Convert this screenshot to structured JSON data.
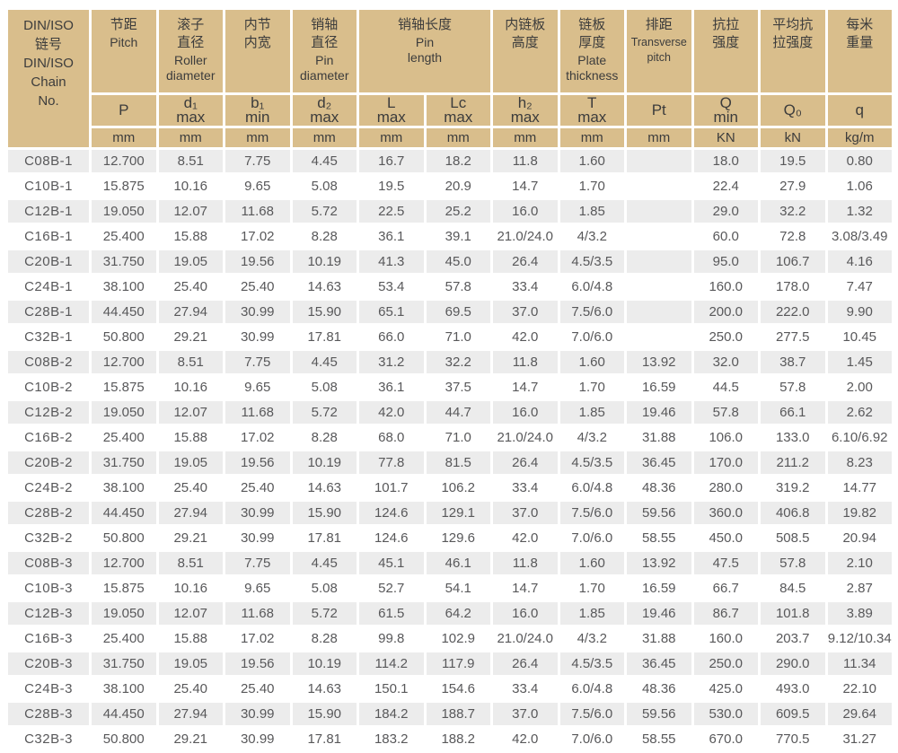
{
  "colors": {
    "header_bg": "#d9be8c",
    "stripe_bg": "#ececec",
    "data_text": "#58585a",
    "header_text": "#3c3c3c"
  },
  "table": {
    "chain_col_header": "DIN/ISO\n链号\nDIN/ISO\nChain\nNo.",
    "groups": [
      {
        "zh": "节距",
        "en": "Pitch",
        "span": 1
      },
      {
        "zh": "滚子\n直径",
        "en": "Roller\ndiameter",
        "span": 1
      },
      {
        "zh": "内节\n内宽",
        "en": "",
        "span": 1
      },
      {
        "zh": "销轴\n直径",
        "en": "Pin\ndiameter",
        "span": 1
      },
      {
        "zh": "销轴长度",
        "en": "Pin\nlength",
        "span": 2
      },
      {
        "zh": "内链板\n高度",
        "en": "",
        "span": 1
      },
      {
        "zh": "链板\n厚度",
        "en": "Plate\nthickness",
        "span": 1
      },
      {
        "zh": "排距",
        "en": "Transverse\npitch",
        "span": 1
      },
      {
        "zh": "抗拉\n强度",
        "en": "",
        "span": 1
      },
      {
        "zh": "平均抗\n拉强度",
        "en": "",
        "span": 1
      },
      {
        "zh": "每米\n重量",
        "en": "",
        "span": 1
      }
    ],
    "symbols": [
      "P",
      "d₁\nmax",
      "b₁\nmin",
      "d₂\nmax",
      "L\nmax",
      "Lc\nmax",
      "h₂\nmax",
      "T\nmax",
      "Pt",
      "Q\nmin",
      "Q₀",
      "q"
    ],
    "units": [
      "mm",
      "mm",
      "mm",
      "mm",
      "mm",
      "mm",
      "mm",
      "mm",
      "mm",
      "KN",
      "kN",
      "kg/m"
    ],
    "rows": [
      [
        "C08B-1",
        "12.700",
        "8.51",
        "7.75",
        "4.45",
        "16.7",
        "18.2",
        "11.8",
        "1.60",
        "",
        "18.0",
        "19.5",
        "0.80"
      ],
      [
        "C10B-1",
        "15.875",
        "10.16",
        "9.65",
        "5.08",
        "19.5",
        "20.9",
        "14.7",
        "1.70",
        "",
        "22.4",
        "27.9",
        "1.06"
      ],
      [
        "C12B-1",
        "19.050",
        "12.07",
        "11.68",
        "5.72",
        "22.5",
        "25.2",
        "16.0",
        "1.85",
        "",
        "29.0",
        "32.2",
        "1.32"
      ],
      [
        "C16B-1",
        "25.400",
        "15.88",
        "17.02",
        "8.28",
        "36.1",
        "39.1",
        "21.0/24.0",
        "4/3.2",
        "",
        "60.0",
        "72.8",
        "3.08/3.49"
      ],
      [
        "C20B-1",
        "31.750",
        "19.05",
        "19.56",
        "10.19",
        "41.3",
        "45.0",
        "26.4",
        "4.5/3.5",
        "",
        "95.0",
        "106.7",
        "4.16"
      ],
      [
        "C24B-1",
        "38.100",
        "25.40",
        "25.40",
        "14.63",
        "53.4",
        "57.8",
        "33.4",
        "6.0/4.8",
        "",
        "160.0",
        "178.0",
        "7.47"
      ],
      [
        "C28B-1",
        "44.450",
        "27.94",
        "30.99",
        "15.90",
        "65.1",
        "69.5",
        "37.0",
        "7.5/6.0",
        "",
        "200.0",
        "222.0",
        "9.90"
      ],
      [
        "C32B-1",
        "50.800",
        "29.21",
        "30.99",
        "17.81",
        "66.0",
        "71.0",
        "42.0",
        "7.0/6.0",
        "",
        "250.0",
        "277.5",
        "10.45"
      ],
      [
        "C08B-2",
        "12.700",
        "8.51",
        "7.75",
        "4.45",
        "31.2",
        "32.2",
        "11.8",
        "1.60",
        "13.92",
        "32.0",
        "38.7",
        "1.45"
      ],
      [
        "C10B-2",
        "15.875",
        "10.16",
        "9.65",
        "5.08",
        "36.1",
        "37.5",
        "14.7",
        "1.70",
        "16.59",
        "44.5",
        "57.8",
        "2.00"
      ],
      [
        "C12B-2",
        "19.050",
        "12.07",
        "11.68",
        "5.72",
        "42.0",
        "44.7",
        "16.0",
        "1.85",
        "19.46",
        "57.8",
        "66.1",
        "2.62"
      ],
      [
        "C16B-2",
        "25.400",
        "15.88",
        "17.02",
        "8.28",
        "68.0",
        "71.0",
        "21.0/24.0",
        "4/3.2",
        "31.88",
        "106.0",
        "133.0",
        "6.10/6.92"
      ],
      [
        "C20B-2",
        "31.750",
        "19.05",
        "19.56",
        "10.19",
        "77.8",
        "81.5",
        "26.4",
        "4.5/3.5",
        "36.45",
        "170.0",
        "211.2",
        "8.23"
      ],
      [
        "C24B-2",
        "38.100",
        "25.40",
        "25.40",
        "14.63",
        "101.7",
        "106.2",
        "33.4",
        "6.0/4.8",
        "48.36",
        "280.0",
        "319.2",
        "14.77"
      ],
      [
        "C28B-2",
        "44.450",
        "27.94",
        "30.99",
        "15.90",
        "124.6",
        "129.1",
        "37.0",
        "7.5/6.0",
        "59.56",
        "360.0",
        "406.8",
        "19.82"
      ],
      [
        "C32B-2",
        "50.800",
        "29.21",
        "30.99",
        "17.81",
        "124.6",
        "129.6",
        "42.0",
        "7.0/6.0",
        "58.55",
        "450.0",
        "508.5",
        "20.94"
      ],
      [
        "C08B-3",
        "12.700",
        "8.51",
        "7.75",
        "4.45",
        "45.1",
        "46.1",
        "11.8",
        "1.60",
        "13.92",
        "47.5",
        "57.8",
        "2.10"
      ],
      [
        "C10B-3",
        "15.875",
        "10.16",
        "9.65",
        "5.08",
        "52.7",
        "54.1",
        "14.7",
        "1.70",
        "16.59",
        "66.7",
        "84.5",
        "2.87"
      ],
      [
        "C12B-3",
        "19.050",
        "12.07",
        "11.68",
        "5.72",
        "61.5",
        "64.2",
        "16.0",
        "1.85",
        "19.46",
        "86.7",
        "101.8",
        "3.89"
      ],
      [
        "C16B-3",
        "25.400",
        "15.88",
        "17.02",
        "8.28",
        "99.8",
        "102.9",
        "21.0/24.0",
        "4/3.2",
        "31.88",
        "160.0",
        "203.7",
        "9.12/10.34"
      ],
      [
        "C20B-3",
        "31.750",
        "19.05",
        "19.56",
        "10.19",
        "114.2",
        "117.9",
        "26.4",
        "4.5/3.5",
        "36.45",
        "250.0",
        "290.0",
        "11.34"
      ],
      [
        "C24B-3",
        "38.100",
        "25.40",
        "25.40",
        "14.63",
        "150.1",
        "154.6",
        "33.4",
        "6.0/4.8",
        "48.36",
        "425.0",
        "493.0",
        "22.10"
      ],
      [
        "C28B-3",
        "44.450",
        "27.94",
        "30.99",
        "15.90",
        "184.2",
        "188.7",
        "37.0",
        "7.5/6.0",
        "59.56",
        "530.0",
        "609.5",
        "29.64"
      ],
      [
        "C32B-3",
        "50.800",
        "29.21",
        "30.99",
        "17.81",
        "183.2",
        "188.2",
        "42.0",
        "7.0/6.0",
        "58.55",
        "670.0",
        "770.5",
        "31.27"
      ]
    ]
  }
}
